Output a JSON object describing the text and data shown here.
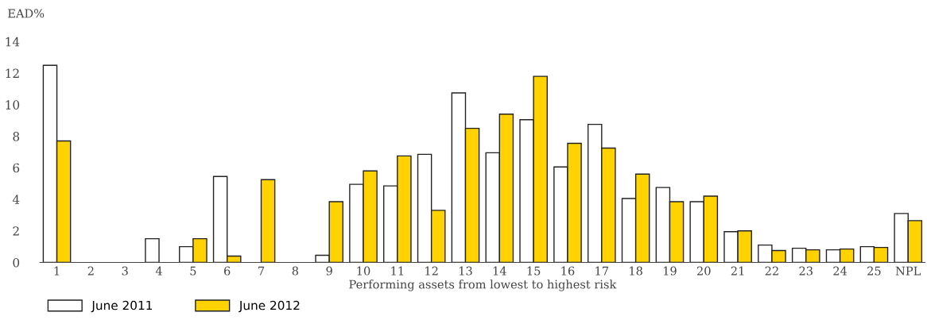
{
  "chart_data": {
    "type": "bar",
    "ylabel": "EAD%",
    "xlabel": "Performing assets from lowest to highest risk",
    "categories": [
      "1",
      "2",
      "3",
      "4",
      "5",
      "6",
      "7",
      "8",
      "9",
      "10",
      "11",
      "12",
      "13",
      "14",
      "15",
      "16",
      "17",
      "18",
      "19",
      "20",
      "21",
      "22",
      "23",
      "24",
      "25",
      "NPL"
    ],
    "series": [
      {
        "name": "June 2011",
        "color": "#ffffff",
        "values": [
          12.5,
          0,
          0,
          1.5,
          1.0,
          5.45,
          0,
          0,
          0.45,
          4.95,
          4.85,
          6.85,
          10.75,
          6.95,
          9.05,
          6.05,
          8.75,
          4.05,
          4.75,
          3.85,
          1.95,
          1.1,
          0.9,
          0.8,
          1.0,
          3.1
        ]
      },
      {
        "name": "June 2012",
        "color": "#ffd200",
        "values": [
          7.7,
          0,
          0,
          0,
          1.5,
          0.4,
          5.25,
          0,
          3.85,
          5.8,
          6.75,
          3.3,
          8.5,
          9.4,
          11.8,
          7.55,
          7.25,
          5.6,
          3.85,
          4.2,
          2.0,
          0.75,
          0.8,
          0.85,
          0.95,
          2.65
        ]
      }
    ],
    "ylim": [
      0,
      14
    ],
    "yticks": [
      0,
      2,
      4,
      6,
      8,
      10,
      12,
      14
    ],
    "grid": false,
    "legend": "bottom left"
  }
}
